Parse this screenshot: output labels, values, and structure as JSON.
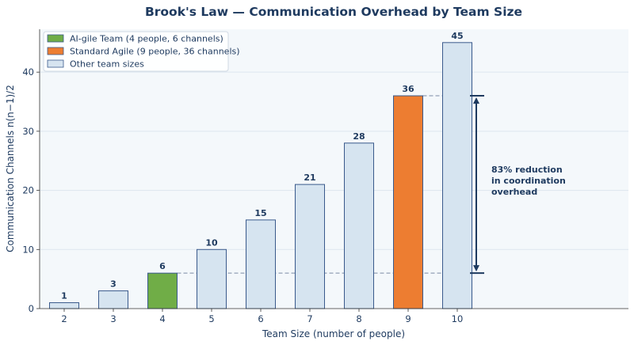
{
  "chart_data": {
    "type": "bar",
    "title": "Brook's Law — Communication Overhead by Team Size",
    "xlabel": "Team Size (number of people)",
    "ylabel": "Communication Channels  n(n−1)/2",
    "categories": [
      "2",
      "3",
      "4",
      "5",
      "6",
      "7",
      "8",
      "9",
      "10"
    ],
    "values": [
      1,
      3,
      6,
      10,
      15,
      21,
      28,
      36,
      45
    ],
    "bar_roles": [
      "other",
      "other",
      "aigile",
      "other",
      "other",
      "other",
      "other",
      "standard",
      "other"
    ],
    "ylim": [
      0,
      47.25
    ],
    "yticks": [
      0,
      10,
      20,
      30,
      40
    ],
    "grid": true,
    "legend_position": "top-left",
    "legend": [
      {
        "role": "aigile",
        "label": "AI-gile Team (4 people, 6 channels)",
        "color": "#70ad47"
      },
      {
        "role": "standard",
        "label": "Standard Agile (9 people, 36 channels)",
        "color": "#ed7d31"
      },
      {
        "role": "other",
        "label": "Other team sizes",
        "color": "#d6e4f0"
      }
    ],
    "reference_lines": [
      {
        "value": 6,
        "from_category": "4",
        "to_category": "10"
      },
      {
        "value": 36,
        "from_category": "9",
        "to_category": "10"
      }
    ],
    "annotation": {
      "text_lines": [
        "83% reduction",
        "in coordination",
        "overhead"
      ],
      "from_value": 36,
      "to_value": 6
    },
    "colors": {
      "bar_edge": "#3a5a8c",
      "title": "#1e3a5f",
      "plot_background": "#f4f8fb",
      "grid": "#dde6ef",
      "reference_line": "#7a8aa5",
      "arrow": "#1e3a5f"
    }
  }
}
